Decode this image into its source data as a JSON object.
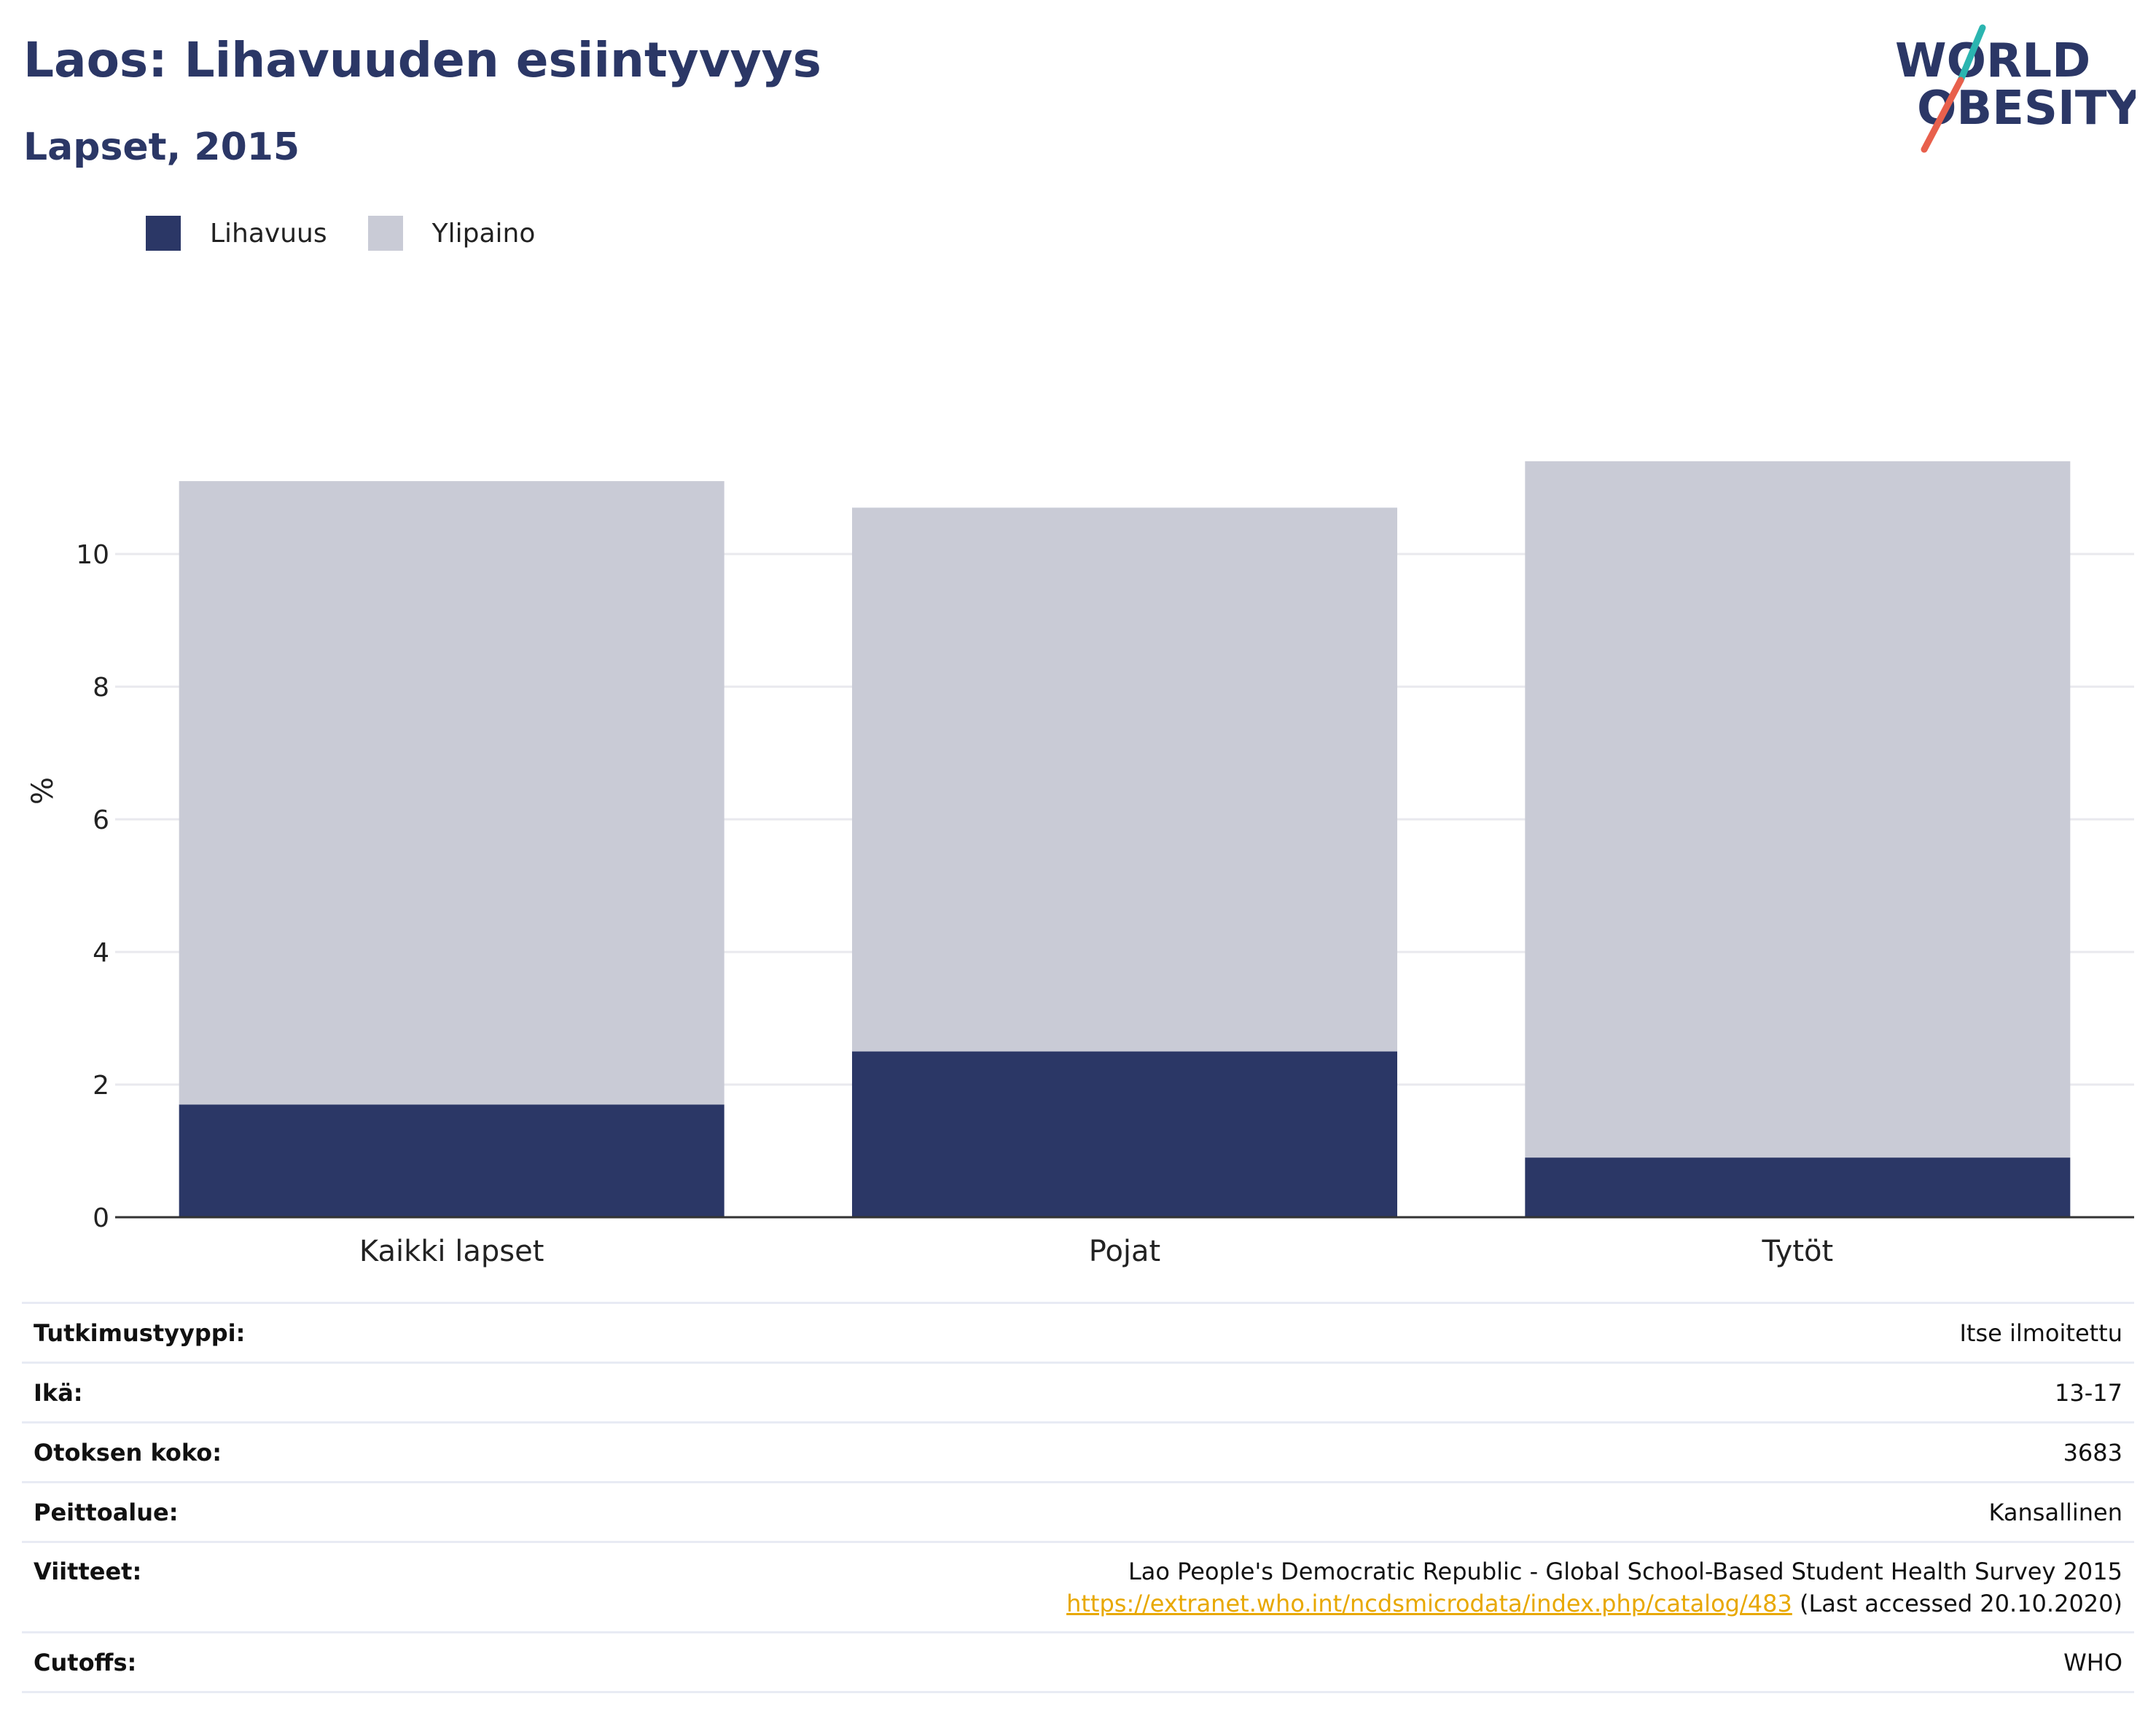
{
  "header": {
    "title": "Laos: Lihavuuden esiintyvyys",
    "subtitle": "Lapset, 2015"
  },
  "logo": {
    "line1": "WORLD",
    "line2": "OBESITY",
    "accent_teal": "#2bb5b0",
    "accent_red": "#e8604c",
    "text_color": "#2b3766"
  },
  "legend": [
    {
      "label": "Lihavuus",
      "color": "#2b3766"
    },
    {
      "label": "Ylipaino",
      "color": "#c9cbd6"
    }
  ],
  "chart_data": {
    "type": "bar",
    "stacked": true,
    "categories": [
      "Kaikki lapset",
      "Pojat",
      "Tytöt"
    ],
    "series": [
      {
        "name": "Lihavuus",
        "color": "#2b3766",
        "values": [
          1.7,
          2.5,
          0.9
        ]
      },
      {
        "name": "Ylipaino",
        "color": "#c9cbd6",
        "values": [
          9.4,
          8.2,
          10.5
        ]
      }
    ],
    "ylabel": "%",
    "yticks": [
      0,
      2,
      4,
      6,
      8,
      10
    ],
    "ylim": [
      0,
      12.2
    ],
    "grid": true
  },
  "info": [
    {
      "key": "Tutkimustyyppi:",
      "value": "Itse ilmoitettu"
    },
    {
      "key": "Ikä:",
      "value": "13-17"
    },
    {
      "key": "Otoksen koko:",
      "value": "3683"
    },
    {
      "key": "Peittoalue:",
      "value": "Kansallinen"
    },
    {
      "key": "Viitteet:",
      "value": "Lao People's Democratic Republic - Global School-Based Student Health Survey 2015",
      "link": "https://extranet.who.int/ncdsmicrodata/index.php/catalog/483",
      "note": "(Last accessed 20.10.2020)"
    },
    {
      "key": "Cutoffs:",
      "value": "WHO"
    }
  ]
}
